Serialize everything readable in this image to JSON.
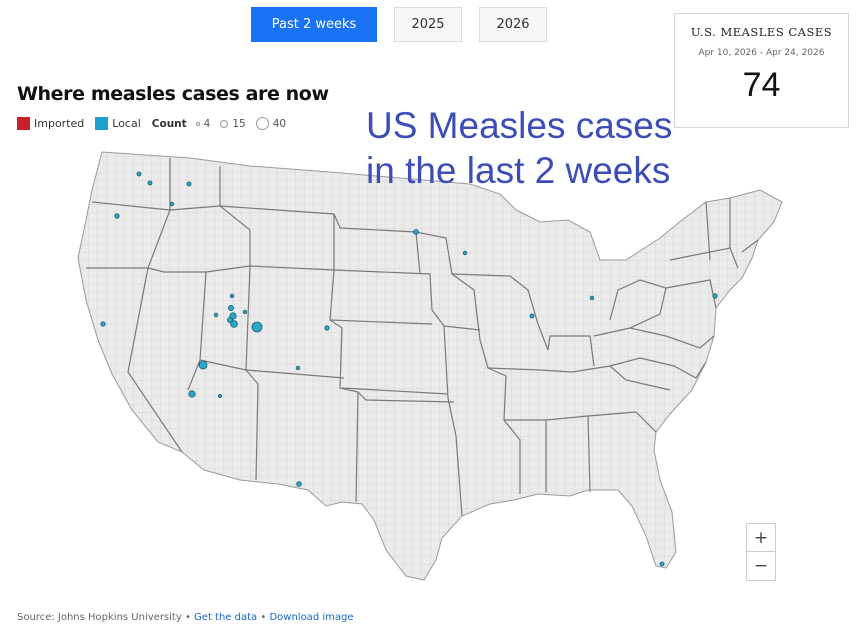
{
  "tabs": [
    {
      "label": "Past 2 weeks",
      "active": true
    },
    {
      "label": "2025",
      "active": false
    },
    {
      "label": "2026",
      "active": false
    }
  ],
  "stat_card": {
    "title": "U.S. MEASLES CASES",
    "date_range": "Apr 10, 2026 - Apr 24, 2026",
    "value": "74"
  },
  "map": {
    "title": "Where measles cases are now",
    "overlay_line1": "US Measles cases",
    "overlay_line2": "in the last 2 weeks",
    "legend": {
      "imported_label": "Imported",
      "imported_color": "#c8202a",
      "local_label": "Local",
      "local_color": "#1e9fce",
      "count_label": "Count",
      "sizes": [
        "4",
        "15",
        "40"
      ]
    },
    "land_color": "#ebebeb",
    "state_border_color": "#7a7a7a"
  },
  "zoom": {
    "in_label": "+",
    "out_label": "−"
  },
  "footer": {
    "source": "Source: Johns Hopkins University",
    "separator": "•",
    "get_data": "Get the data",
    "download": "Download image"
  }
}
